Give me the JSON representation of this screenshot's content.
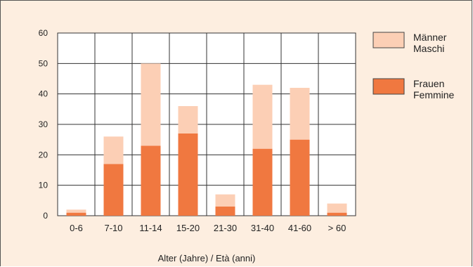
{
  "chart_data": {
    "type": "bar",
    "stacked": true,
    "categories": [
      "0-6",
      "7-10",
      "11-14",
      "15-20",
      "21-30",
      "31-40",
      "41-60",
      "> 60"
    ],
    "series": [
      {
        "name": "Frauen\nFemmine",
        "label_lines": [
          "Frauen",
          "Femmine"
        ],
        "color": "#f07840",
        "values": [
          1,
          17,
          23,
          27,
          3,
          22,
          25,
          1
        ]
      },
      {
        "name": "Männer\nMaschi",
        "label_lines": [
          "Männer",
          "Maschi"
        ],
        "color": "#fccfb5",
        "values": [
          1,
          9,
          27,
          9,
          4,
          21,
          17,
          3
        ]
      }
    ],
    "totals": [
      2,
      26,
      50,
      36,
      7,
      43,
      42,
      4
    ],
    "xlabel": "Alter (Jahre) / Età (anni)",
    "ylabel": "",
    "ylim": [
      0,
      60
    ],
    "yticks": [
      0,
      10,
      20,
      30,
      40,
      50,
      60
    ],
    "grid": true,
    "legend_position": "right",
    "legend_order": [
      "Männer\nMaschi",
      "Frauen\nFemmine"
    ],
    "background_color": "#fdeee0",
    "plot_background_color": "#ffffff"
  }
}
